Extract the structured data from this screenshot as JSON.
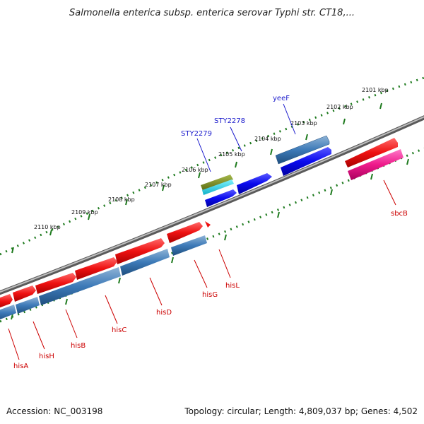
{
  "title": "Salmonella enterica subsp. enterica serovar Typhi str. CT18,...",
  "accession": "Accession: NC_003198",
  "summary": "Topology: circular; Length: 4,809,037 bp; Genes: 4,502",
  "colors": {
    "backbone": "#777777",
    "tick": "#1e7a1e",
    "forward_gene": "#ee1111",
    "reverse_gene": "#3d7ab8",
    "label_red": "#cc0000",
    "label_blue": "#1a1acc"
  },
  "scale_labels": [
    {
      "id": "2101",
      "text": "2101 kbp"
    },
    {
      "id": "2102",
      "text": "2102 kbp"
    },
    {
      "id": "2103",
      "text": "2103 kbp"
    },
    {
      "id": "2104",
      "text": "2104 kbp"
    },
    {
      "id": "2105",
      "text": "2105 kbp"
    },
    {
      "id": "2106",
      "text": "2106 kbp"
    },
    {
      "id": "2107",
      "text": "2107 kbp"
    },
    {
      "id": "2108",
      "text": "2108 kbp"
    },
    {
      "id": "2109",
      "text": "2109 kbp"
    },
    {
      "id": "2110",
      "text": "2110 kbp"
    }
  ],
  "genes": [
    {
      "id": "yeeF",
      "label": "yeeF"
    },
    {
      "id": "STY2278",
      "label": "STY2278"
    },
    {
      "id": "STY2279",
      "label": "STY2279"
    },
    {
      "id": "sbcB",
      "label": "sbcB"
    },
    {
      "id": "hisL",
      "label": "hisL"
    },
    {
      "id": "hisG",
      "label": "hisG"
    },
    {
      "id": "hisD",
      "label": "hisD"
    },
    {
      "id": "hisC",
      "label": "hisC"
    },
    {
      "id": "hisB",
      "label": "hisB"
    },
    {
      "id": "hisH",
      "label": "hisH"
    },
    {
      "id": "hisA",
      "label": "hisA"
    }
  ]
}
